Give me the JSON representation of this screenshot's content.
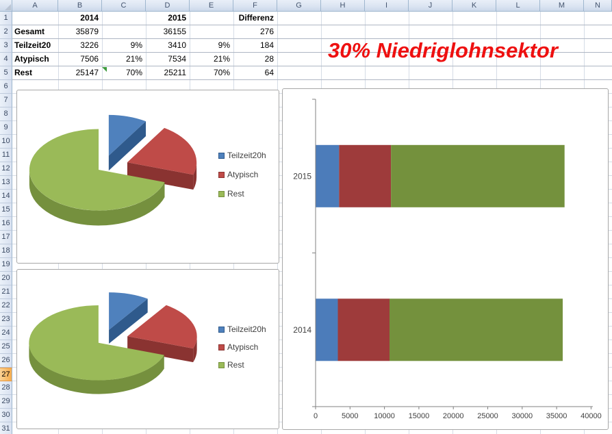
{
  "grid": {
    "corner_label": "",
    "columns": [
      "A",
      "B",
      "C",
      "D",
      "E",
      "F",
      "G",
      "H",
      "I",
      "J",
      "K",
      "L",
      "M",
      "N"
    ],
    "row_count": 31,
    "active_row": 27
  },
  "sheet_table": {
    "headers": {
      "y2014": "2014",
      "y2015": "2015",
      "diff": "Differenz"
    },
    "rows": [
      {
        "label": "Gesamt",
        "b": "35879",
        "c": "",
        "d": "36155",
        "e": "",
        "f": "276"
      },
      {
        "label": "Teilzeit20",
        "b": "3226",
        "c": "9%",
        "d": "3410",
        "e": "9%",
        "f": "184"
      },
      {
        "label": "Atypisch",
        "b": "7506",
        "c": "21%",
        "d": "7534",
        "e": "21%",
        "f": "28"
      },
      {
        "label": "Rest",
        "b": "25147",
        "c": "70%",
        "d": "25211",
        "e": "70%",
        "f": "64"
      }
    ]
  },
  "banner": {
    "text": "30% Niedriglohnsektor",
    "color": "#EE1010"
  },
  "chart_data": [
    {
      "id": "pie-top",
      "type": "pie",
      "style": "3d-exploded",
      "legend_position": "right",
      "labels": [
        "Teilzeit20h",
        "Atypisch",
        "Rest"
      ],
      "values": [
        3226,
        7506,
        25147
      ],
      "percentages": [
        9,
        21,
        70
      ],
      "colors": [
        "#4F81BD",
        "#BF4B48",
        "#9ABA58"
      ],
      "side_colors": [
        "#2F5A8C",
        "#8A3331",
        "#75903E"
      ]
    },
    {
      "id": "pie-bottom",
      "type": "pie",
      "style": "3d-exploded",
      "legend_position": "right",
      "labels": [
        "Teilzeit20h",
        "Atypisch",
        "Rest"
      ],
      "values": [
        3410,
        7534,
        25211
      ],
      "percentages": [
        9,
        21,
        70
      ],
      "colors": [
        "#4F81BD",
        "#BF4B48",
        "#9ABA58"
      ],
      "side_colors": [
        "#2F5A8C",
        "#8A3331",
        "#75903E"
      ]
    },
    {
      "id": "stacked-bar",
      "type": "bar",
      "orientation": "horizontal",
      "stacked": true,
      "categories": [
        "2015",
        "2014"
      ],
      "series": [
        {
          "name": "Teilzeit20h",
          "values": [
            3410,
            3226
          ],
          "color": "#4C7CBA"
        },
        {
          "name": "Atypisch",
          "values": [
            7534,
            7506
          ],
          "color": "#9E3B3B"
        },
        {
          "name": "Rest",
          "values": [
            25211,
            25147
          ],
          "color": "#74913D"
        }
      ],
      "xlim": [
        0,
        40000
      ],
      "xtick_labels": [
        "0",
        "5000",
        "10000",
        "15000",
        "20000",
        "25000",
        "30000",
        "35000",
        "40000"
      ],
      "grid": false,
      "legend_position": "none",
      "axis_color": "#808080",
      "label_color": "#3F3F3F"
    }
  ]
}
